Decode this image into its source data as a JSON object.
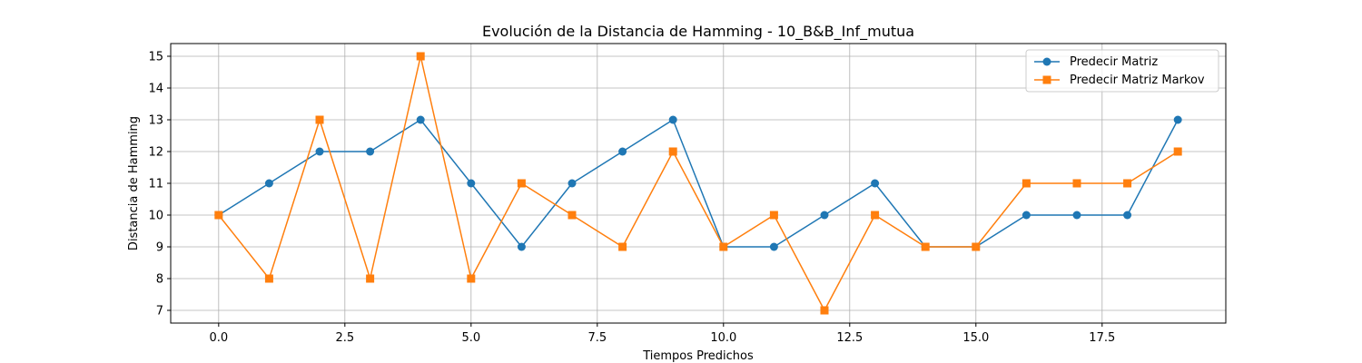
{
  "chart_data": {
    "type": "line",
    "title": "Evolución de la Distancia de Hamming - 10_B&B_Inf_mutua",
    "xlabel": "Tiempos Predichos",
    "ylabel": "Distancia de Hamming",
    "x": [
      0,
      1,
      2,
      3,
      4,
      5,
      6,
      7,
      8,
      9,
      10,
      11,
      12,
      13,
      14,
      15,
      16,
      17,
      18,
      19
    ],
    "xlim": [
      -0.95,
      19.95
    ],
    "ylim": [
      6.6,
      15.4
    ],
    "xticks": [
      0.0,
      2.5,
      5.0,
      7.5,
      10.0,
      12.5,
      15.0,
      17.5
    ],
    "xtick_labels": [
      "0.0",
      "2.5",
      "5.0",
      "7.5",
      "10.0",
      "12.5",
      "15.0",
      "17.5"
    ],
    "yticks": [
      7,
      8,
      9,
      10,
      11,
      12,
      13,
      14,
      15
    ],
    "ytick_labels": [
      "7",
      "8",
      "9",
      "10",
      "11",
      "12",
      "13",
      "14",
      "15"
    ],
    "grid": true,
    "legend_position": "top-right",
    "series": [
      {
        "name": "Predecir Matriz",
        "color": "#1f77b4",
        "marker": "circle",
        "values": [
          10,
          11,
          12,
          12,
          13,
          11,
          9,
          11,
          12,
          13,
          9,
          9,
          10,
          11,
          9,
          9,
          10,
          10,
          10,
          13
        ]
      },
      {
        "name": "Predecir Matriz Markov",
        "color": "#ff7f0e",
        "marker": "square",
        "values": [
          10,
          8,
          13,
          8,
          15,
          8,
          11,
          10,
          9,
          12,
          9,
          10,
          7,
          10,
          9,
          9,
          11,
          11,
          11,
          12
        ]
      }
    ]
  }
}
